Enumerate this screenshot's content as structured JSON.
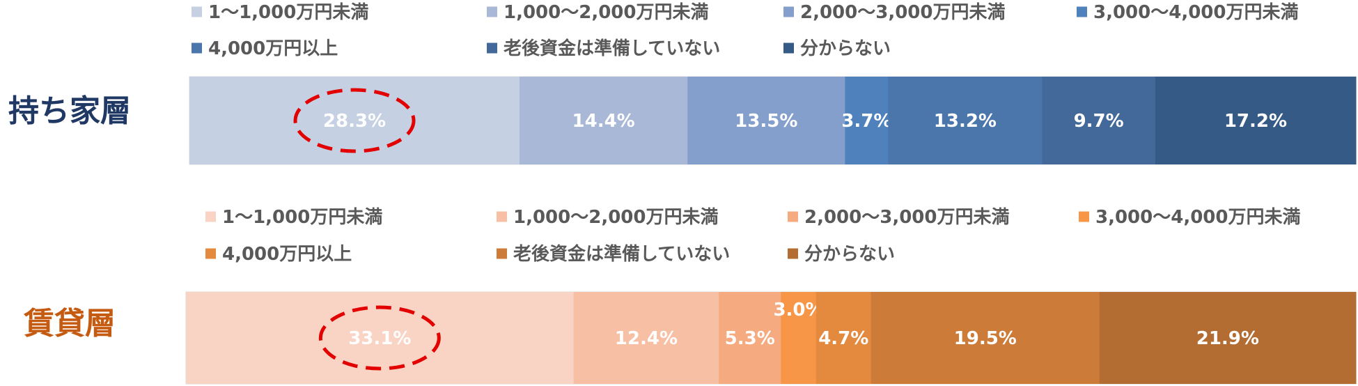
{
  "chart_data": [
    {
      "type": "bar",
      "orientation": "horizontal-stacked-100",
      "row_label": "持ち家層",
      "row_label_color": "#1f3864",
      "legend": [
        {
          "name": "1～1,000万円未満",
          "color": "#c5d0e3"
        },
        {
          "name": "1,000～2,000万円未満",
          "color": "#a9b8d7"
        },
        {
          "name": "2,000～3,000万円未満",
          "color": "#849fcb"
        },
        {
          "name": "3,000～4,000万円未満",
          "color": "#4f81bd"
        },
        {
          "name": "4,000万円以上",
          "color": "#4a76ac"
        },
        {
          "name": "老後資金は準備していない",
          "color": "#43699b"
        },
        {
          "name": "分からない",
          "color": "#355a86"
        }
      ],
      "values": [
        28.3,
        14.4,
        13.5,
        3.7,
        13.2,
        9.7,
        17.2
      ],
      "labels": [
        "28.3%",
        "14.4%",
        "13.5%",
        "3.7%",
        "13.2%",
        "9.7%",
        "17.2%"
      ],
      "highlight_index": 0,
      "highlight_color": "#e30000"
    },
    {
      "type": "bar",
      "orientation": "horizontal-stacked-100",
      "row_label": "賃貸層",
      "row_label_color": "#c55a11",
      "legend": [
        {
          "name": "1～1,000万円未満",
          "color": "#f9d3c3"
        },
        {
          "name": "1,000～2,000万円未満",
          "color": "#f7bfa3"
        },
        {
          "name": "2,000～3,000万円未満",
          "color": "#f5aa7f"
        },
        {
          "name": "3,000～4,000万円未満",
          "color": "#f79646"
        },
        {
          "name": "4,000万円以上",
          "color": "#e48a3f"
        },
        {
          "name": "老後資金は準備していない",
          "color": "#cd7b39"
        },
        {
          "name": "分からない",
          "color": "#b36d32"
        }
      ],
      "values": [
        33.1,
        12.4,
        5.3,
        3.0,
        4.7,
        19.5,
        21.9
      ],
      "labels": [
        "33.1%",
        "12.4%",
        "5.3%",
        "3.0%",
        "4.7%",
        "19.5%",
        "21.9%"
      ],
      "highlight_index": 0,
      "highlight_color": "#e30000"
    }
  ]
}
